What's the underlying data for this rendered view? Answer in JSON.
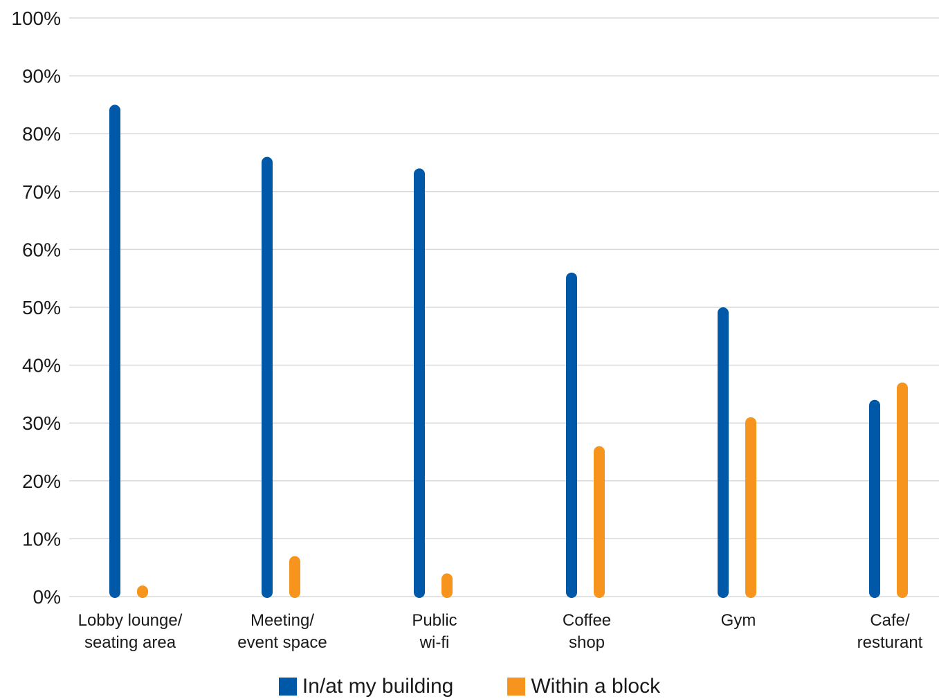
{
  "chart_data": {
    "type": "bar",
    "categories": [
      [
        "Lobby lounge/",
        "seating area"
      ],
      [
        "Meeting/",
        "event space"
      ],
      [
        "Public",
        "wi-fi"
      ],
      [
        "Coffee",
        "shop"
      ],
      [
        "Gym"
      ],
      [
        "Cafe/",
        "resturant"
      ]
    ],
    "series": [
      {
        "name": "In/at my building",
        "color": "#0058a9",
        "values": [
          85,
          76,
          74,
          56,
          50,
          34
        ]
      },
      {
        "name": "Within a block",
        "color": "#f7941d",
        "values": [
          1,
          7,
          4,
          26,
          31,
          37
        ]
      }
    ],
    "ylim": [
      0,
      100
    ],
    "yticks": [
      0,
      10,
      20,
      30,
      40,
      50,
      60,
      70,
      80,
      90,
      100
    ],
    "ytick_labels": [
      "0%",
      "10%",
      "20%",
      "30%",
      "40%",
      "50%",
      "60%",
      "70%",
      "80%",
      "90%",
      "100%"
    ],
    "grid": true,
    "legend_position": "bottom-center",
    "title": "",
    "xlabel": "",
    "ylabel": ""
  }
}
